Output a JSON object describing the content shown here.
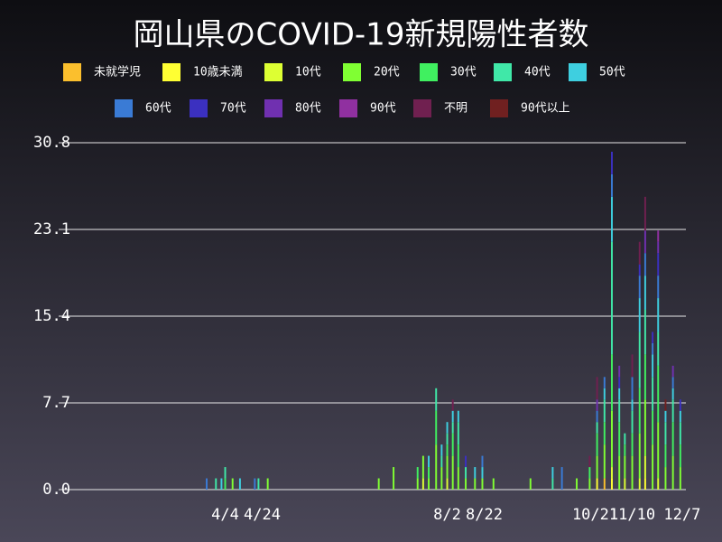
{
  "chart_data": {
    "type": "bar",
    "stacked": true,
    "title": "岡山県のCOVID-19新規陽性者数",
    "x": [
      85,
      90,
      93,
      95,
      99,
      103,
      111,
      113,
      118,
      178,
      186,
      199,
      202,
      205,
      209,
      212,
      215,
      218,
      221,
      225,
      230,
      234,
      240,
      260,
      272,
      277,
      285,
      292,
      296,
      300,
      304,
      308,
      311,
      315,
      319,
      322,
      326,
      329,
      333,
      337,
      341
    ],
    "xlim": [
      5,
      344
    ],
    "xticks": [
      {
        "value": 95,
        "label": "4/4"
      },
      {
        "value": 115,
        "label": "4/24"
      },
      {
        "value": 215,
        "label": "8/2"
      },
      {
        "value": 235,
        "label": "8/22"
      },
      {
        "value": 295,
        "label": "10/21"
      },
      {
        "value": 315,
        "label": "11/10"
      },
      {
        "value": 342,
        "label": "12/7"
      }
    ],
    "ylim": [
      0,
      30.8
    ],
    "yticks": [
      {
        "value": 0,
        "label": "0.0"
      },
      7.7,
      15.4,
      23.1,
      30.8
    ],
    "grid": true,
    "series": [
      {
        "name": "未就学児",
        "color": "#fbbf2d",
        "values": [
          0,
          0,
          0,
          0,
          0,
          0,
          0,
          0,
          0,
          0,
          0,
          0,
          0,
          0,
          0,
          0,
          0,
          0,
          0,
          0,
          0,
          0,
          0,
          0,
          0,
          0,
          0,
          0,
          0,
          1,
          0,
          0,
          0,
          0,
          0,
          0,
          0,
          0,
          0,
          0,
          0
        ]
      },
      {
        "name": "10歳未満",
        "color": "#ffff33",
        "values": [
          0,
          0,
          0,
          0,
          0,
          0,
          0,
          0,
          0,
          0,
          0,
          0,
          0,
          0,
          0,
          0,
          0,
          0,
          0,
          0,
          0,
          0,
          0,
          0,
          0,
          0,
          0,
          0,
          1,
          0,
          1,
          0,
          0,
          0,
          0,
          1,
          0,
          0,
          0,
          0,
          0
        ]
      },
      {
        "name": "10代",
        "color": "#ddff33",
        "values": [
          0,
          0,
          0,
          0,
          0,
          0,
          0,
          0,
          0,
          0,
          0,
          0,
          1,
          0,
          0,
          0,
          1,
          0,
          0,
          0,
          0,
          0,
          0,
          0,
          0,
          0,
          0,
          0,
          0,
          0,
          1,
          0,
          1,
          0,
          1,
          2,
          0,
          1,
          0,
          0,
          0
        ]
      },
      {
        "name": "20代",
        "color": "#80ff33",
        "values": [
          0,
          0,
          0,
          0,
          1,
          0,
          0,
          0,
          1,
          1,
          2,
          1,
          2,
          1,
          4,
          2,
          2,
          3,
          2,
          1,
          1,
          1,
          1,
          1,
          0,
          0,
          1,
          1,
          2,
          3,
          5,
          3,
          2,
          3,
          4,
          5,
          4,
          5,
          2,
          3,
          2
        ]
      },
      {
        "name": "30代",
        "color": "#40f060",
        "values": [
          0,
          0,
          0,
          1,
          0,
          0,
          0,
          0,
          0,
          0,
          0,
          1,
          0,
          1,
          3,
          0,
          1,
          2,
          2,
          0,
          0,
          0,
          0,
          0,
          0,
          0,
          0,
          1,
          2,
          2,
          5,
          3,
          1,
          2,
          4,
          4,
          3,
          5,
          2,
          3,
          2
        ]
      },
      {
        "name": "40代",
        "color": "#40e8a8",
        "values": [
          0,
          1,
          0,
          1,
          0,
          0,
          0,
          1,
          0,
          0,
          0,
          0,
          0,
          0,
          2,
          1,
          1,
          1,
          2,
          1,
          0,
          0,
          0,
          0,
          1,
          0,
          0,
          0,
          1,
          2,
          10,
          2,
          1,
          2,
          5,
          4,
          3,
          3,
          2,
          2,
          2
        ]
      },
      {
        "name": "50代",
        "color": "#3ecfe0",
        "values": [
          0,
          0,
          1,
          0,
          0,
          1,
          0,
          0,
          0,
          0,
          0,
          0,
          0,
          1,
          0,
          1,
          1,
          1,
          1,
          0,
          1,
          1,
          0,
          0,
          1,
          0,
          0,
          0,
          0,
          1,
          4,
          1,
          0,
          1,
          3,
          3,
          2,
          3,
          1,
          1,
          1
        ]
      },
      {
        "name": "60代",
        "color": "#3a7bd5",
        "values": [
          1,
          0,
          0,
          0,
          0,
          0,
          1,
          0,
          0,
          0,
          0,
          0,
          0,
          0,
          0,
          0,
          0,
          0,
          0,
          0,
          0,
          1,
          0,
          0,
          0,
          2,
          0,
          0,
          1,
          1,
          2,
          0,
          0,
          2,
          2,
          2,
          1,
          2,
          0,
          1,
          0
        ]
      },
      {
        "name": "70代",
        "color": "#3b30c0",
        "values": [
          0,
          0,
          0,
          0,
          0,
          0,
          0,
          0,
          0,
          0,
          0,
          0,
          0,
          0,
          0,
          0,
          0,
          0,
          0,
          1,
          0,
          0,
          0,
          0,
          0,
          0,
          0,
          0,
          0,
          0,
          2,
          1,
          0,
          0,
          1,
          0,
          1,
          2,
          0,
          0,
          1
        ]
      },
      {
        "name": "80代",
        "color": "#7030b0",
        "values": [
          0,
          0,
          0,
          0,
          0,
          0,
          0,
          0,
          0,
          0,
          0,
          0,
          0,
          0,
          0,
          0,
          0,
          0,
          0,
          0,
          0,
          0,
          0,
          0,
          0,
          0,
          0,
          0,
          1,
          0,
          0,
          1,
          0,
          0,
          0,
          2,
          0,
          1,
          0,
          1,
          0
        ]
      },
      {
        "name": "90代",
        "color": "#9030a0",
        "values": [
          0,
          0,
          0,
          0,
          0,
          0,
          0,
          0,
          0,
          0,
          0,
          0,
          0,
          0,
          0,
          0,
          0,
          0,
          0,
          0,
          0,
          0,
          0,
          0,
          0,
          0,
          0,
          0,
          0,
          0,
          0,
          0,
          0,
          0,
          0,
          0,
          0,
          1,
          0,
          0,
          0
        ]
      },
      {
        "name": "不明",
        "color": "#702050",
        "values": [
          0,
          0,
          0,
          0,
          0,
          0,
          0,
          0,
          0,
          0,
          0,
          0,
          0,
          0,
          0,
          0,
          0,
          1,
          0,
          0,
          0,
          0,
          0,
          0,
          0,
          0,
          0,
          1,
          2,
          0,
          0,
          0,
          0,
          2,
          2,
          3,
          0,
          0,
          0,
          0,
          0
        ]
      },
      {
        "name": "90代以上",
        "color": "#702020",
        "values": [
          0,
          0,
          0,
          0,
          0,
          0,
          0,
          0,
          0,
          0,
          0,
          0,
          0,
          0,
          0,
          0,
          0,
          0,
          0,
          0,
          0,
          0,
          0,
          0,
          0,
          0,
          0,
          0,
          0,
          0,
          0,
          0,
          0,
          0,
          0,
          0,
          0,
          0,
          1,
          0,
          0
        ]
      }
    ]
  }
}
